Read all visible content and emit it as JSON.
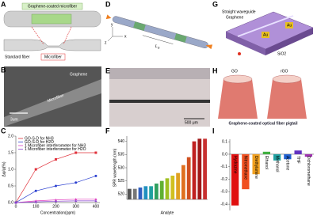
{
  "panels": {
    "A": {
      "letter": "A",
      "title": "Graphene-coated microfiber",
      "left": "Standard fiber",
      "right": "Microfiber"
    },
    "B": {
      "letter": "B",
      "top": "Graphene",
      "fiber": "Microfiber",
      "scale": "3um"
    },
    "D": {
      "letter": "D",
      "length": "L",
      "length_sub": "S",
      "axes": [
        "x",
        "y",
        "z"
      ]
    },
    "E": {
      "letter": "E",
      "scale": "500 μm"
    },
    "G": {
      "letter": "G",
      "labels": [
        "Straight waveguide",
        "Graphene",
        "Au",
        "Au",
        "SiO2"
      ]
    },
    "H": {
      "letter": "H",
      "left": "GO",
      "right": "rGO",
      "caption": "Graphene-coated optical fiber pigtail"
    }
  },
  "chart_data": [
    {
      "type": "line",
      "letter": "C",
      "xlabel": "Concentration(ppm)",
      "ylabel": "Δφ/φ(%)",
      "x": [
        0,
        100,
        200,
        300,
        400
      ],
      "xlim": [
        0,
        420
      ],
      "xticks": [
        0,
        100,
        200,
        300,
        400
      ],
      "ylim": [
        0,
        2
      ],
      "yticks": [
        {
          "value": 0,
          "label": "0.0"
        },
        0.5,
        {
          "value": 1,
          "label": "1.0"
        },
        1.5,
        {
          "value": 2,
          "label": "2.0"
        }
      ],
      "series": [
        {
          "name": "GO-S-D for NH3",
          "color": "#e0303a",
          "marker": "square",
          "values": [
            0,
            1.0,
            1.3,
            1.5,
            1.5
          ]
        },
        {
          "name": "GO-S-D for H2O",
          "color": "#2a3fd0",
          "marker": "circle",
          "values": [
            0,
            0.35,
            0.5,
            0.6,
            0.8
          ]
        },
        {
          "name": "1 Microfiber interferometer for NH3",
          "color": "#e040c0",
          "marker": "triangle",
          "values": [
            0,
            0.05,
            0.08,
            0.1,
            0.1
          ]
        },
        {
          "name": "1 Microfiber interferometer for H2O",
          "color": "#8a40d0",
          "marker": "triangle",
          "values": [
            0,
            0.02,
            0.04,
            0.05,
            0.05
          ]
        }
      ]
    },
    {
      "type": "bar",
      "letter": "F",
      "xlabel": "Analyte",
      "ylabel": "SPR wavelength (nm)",
      "categories": [
        null,
        null,
        null,
        null,
        null,
        null,
        null,
        null,
        null,
        null,
        null,
        null,
        null,
        null,
        null
      ],
      "values": [
        522,
        522,
        522.5,
        523,
        523,
        524,
        525,
        526,
        527,
        528,
        531,
        534,
        540,
        541,
        541
      ],
      "colors": [
        "#555555",
        "#777777",
        "#3060c0",
        "#2090c0",
        "#20a0a0",
        "#30a060",
        "#60b030",
        "#a0c020",
        "#d0c020",
        "#e0a020",
        "#e07020",
        "#d05020",
        "#c02020",
        "#a01818",
        "#c83030"
      ],
      "ylim": [
        518,
        542
      ],
      "yticks": [
        520,
        525,
        530,
        535,
        540
      ]
    },
    {
      "type": "bar",
      "letter": "I",
      "categories": [
        "Hydrazine",
        "Nitromethane",
        "Diethylamine",
        "Ethanol",
        "Methanol",
        "Acetone",
        "THF",
        "Dichloromethane"
      ],
      "values": [
        -0.41,
        -0.28,
        -0.16,
        0.02,
        -0.05,
        -0.04,
        0.03,
        -0.02
      ],
      "colors": [
        "#e01010",
        "#f05020",
        "#f0a020",
        "#40b040",
        "#20a0a0",
        "#2060d0",
        "#6030c0",
        "#a030b0"
      ],
      "ylim": [
        -0.45,
        0.12
      ],
      "yticks": [
        0.1,
        {
          "value": 0,
          "label": "0.0"
        },
        -0.1,
        -0.2,
        -0.3,
        -0.4
      ]
    }
  ]
}
